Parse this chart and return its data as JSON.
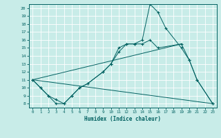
{
  "xlabel": "Humidex (Indice chaleur)",
  "bg_color": "#c8ece8",
  "line_color": "#006060",
  "grid_color": "#ffffff",
  "xlim": [
    -0.5,
    23.5
  ],
  "ylim": [
    7.5,
    20.5
  ],
  "xticks": [
    0,
    1,
    2,
    3,
    4,
    5,
    6,
    7,
    8,
    9,
    10,
    11,
    12,
    13,
    14,
    15,
    16,
    17,
    18,
    19,
    20,
    21,
    22,
    23
  ],
  "yticks": [
    8,
    9,
    10,
    11,
    12,
    13,
    14,
    15,
    16,
    17,
    18,
    19,
    20
  ],
  "line1_x": [
    0,
    1,
    2,
    3,
    4,
    5,
    6,
    7,
    9,
    10,
    11,
    12,
    13,
    14,
    15,
    16,
    17,
    19,
    20,
    21,
    23
  ],
  "line1_y": [
    11,
    10,
    9,
    8,
    8,
    9,
    10,
    10.5,
    12,
    13,
    15,
    15.5,
    15.5,
    16,
    20.5,
    19.5,
    17.5,
    15,
    13.5,
    11,
    8
  ],
  "line2_x": [
    0,
    1,
    2,
    3,
    4,
    5,
    6,
    7,
    9,
    10,
    11,
    12,
    13,
    14,
    15,
    16,
    19,
    20,
    21,
    23
  ],
  "line2_y": [
    11,
    10,
    9,
    8.5,
    8,
    9,
    10,
    10.5,
    12,
    13,
    14.5,
    15.5,
    15.5,
    15.5,
    16,
    15,
    15.5,
    13.5,
    11,
    8
  ],
  "line3_x": [
    0,
    19
  ],
  "line3_y": [
    11,
    15.5
  ],
  "line4_x": [
    0,
    23
  ],
  "line4_y": [
    11,
    8
  ]
}
